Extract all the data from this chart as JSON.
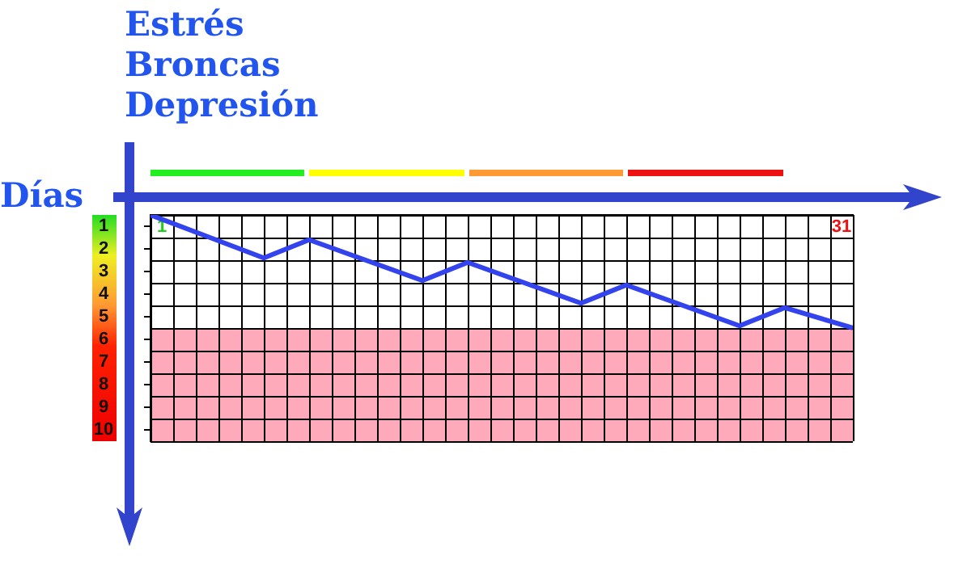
{
  "chart_data": {
    "type": "line",
    "xlabel": "Días",
    "ylabel": "Estrés\nBroncas\nDepresión",
    "x": [
      0,
      5,
      7,
      12,
      14,
      19,
      21,
      26,
      28,
      31
    ],
    "series": [
      {
        "color": "#3344ee",
        "values": [
          0.5,
          2.4,
          1.6,
          3.4,
          2.6,
          4.4,
          3.6,
          5.4,
          4.6,
          5.5
        ]
      }
    ],
    "xlim": [
      0,
      31
    ],
    "xticks": [
      {
        "value": 0.5,
        "label": "1"
      },
      {
        "value": 30.5,
        "label": "31"
      }
    ],
    "ylim": [
      10.5,
      0.5
    ],
    "yticks": [
      1,
      2,
      3,
      4,
      5,
      6,
      7,
      8,
      9,
      10
    ],
    "bands": [
      {
        "axis": "y",
        "from": 5.5,
        "to": 10.5,
        "color": "#ffaabb"
      }
    ],
    "grid": true,
    "marker": "none",
    "line_style": "solid"
  }
}
